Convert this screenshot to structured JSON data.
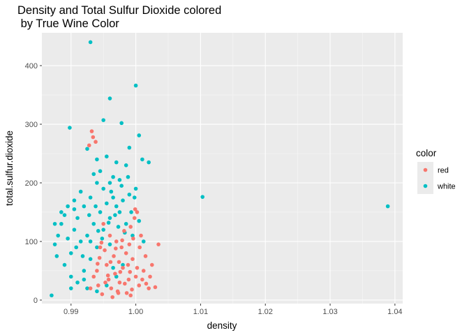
{
  "chart_data": {
    "type": "scatter",
    "title_lines": [
      "Density and Total Sulfur Dioxide colored",
      " by True Wine Color"
    ],
    "xlabel": "density",
    "ylabel": "total.sulfur.dioxide",
    "xlim": [
      0.9855,
      1.0412
    ],
    "ylim": [
      -6,
      456
    ],
    "x_ticks": [
      0.99,
      1.0,
      1.01,
      1.02,
      1.03,
      1.04
    ],
    "x_tick_labels": [
      "0.99",
      "1.00",
      "1.01",
      "1.02",
      "1.03",
      "1.04"
    ],
    "y_ticks": [
      0,
      100,
      200,
      300,
      400
    ],
    "y_tick_labels": [
      "0",
      "100",
      "200",
      "300",
      "400"
    ],
    "grid": true,
    "legend": {
      "title": "color",
      "position": "right",
      "entries": [
        {
          "label": "red",
          "color": "#F8766D"
        },
        {
          "label": "white",
          "color": "#00BFC4"
        }
      ]
    },
    "series": [
      {
        "name": "red",
        "color": "#F8766D",
        "points": [
          [
            0.9955,
            60
          ],
          [
            0.9968,
            45
          ],
          [
            0.9975,
            30
          ],
          [
            0.998,
            55
          ],
          [
            0.9962,
            20
          ],
          [
            0.9985,
            80
          ],
          [
            0.999,
            95
          ],
          [
            0.9995,
            70
          ],
          [
            1.0,
            40
          ],
          [
            1.0005,
            25
          ],
          [
            0.9972,
            15
          ],
          [
            0.9958,
            35
          ],
          [
            0.9948,
            10
          ],
          [
            0.994,
            50
          ],
          [
            0.9978,
            90
          ],
          [
            0.9988,
            60
          ],
          [
            0.9966,
            75
          ],
          [
            0.9952,
            85
          ],
          [
            0.9996,
            105
          ],
          [
            1.0002,
            55
          ],
          [
            1.001,
            35
          ],
          [
            1.002,
            20
          ],
          [
            1.003,
            22
          ],
          [
            1.0025,
            60
          ],
          [
            1.0035,
            95
          ],
          [
            1.0015,
            75
          ],
          [
            1.0008,
            110
          ],
          [
            0.9998,
            140
          ],
          [
            0.9992,
            125
          ],
          [
            0.9982,
            118
          ],
          [
            0.997,
            100
          ],
          [
            0.996,
            110
          ],
          [
            0.9945,
            90
          ],
          [
            0.9935,
            40
          ],
          [
            0.993,
            20
          ],
          [
            0.9942,
            25
          ],
          [
            0.9974,
            65
          ],
          [
            0.9986,
            12
          ],
          [
            0.9992,
            8
          ],
          [
            0.9964,
            5
          ],
          [
            0.995,
            130
          ],
          [
            0.9938,
            270
          ],
          [
            0.9932,
            288
          ],
          [
            0.9934,
            278
          ],
          [
            0.9928,
            264
          ],
          [
            1.0002,
            150
          ],
          [
            0.9999,
            155
          ],
          [
            0.9944,
            72
          ],
          [
            0.9976,
            48
          ],
          [
            0.9983,
            28
          ],
          [
            1.0012,
            50
          ],
          [
            1.0022,
            40
          ],
          [
            0.9994,
            18
          ],
          [
            0.9957,
            42
          ],
          [
            0.9969,
            88
          ],
          [
            0.9979,
            102
          ],
          [
            0.9989,
            35
          ],
          [
            0.9961,
            65
          ],
          [
            0.9953,
            30
          ],
          [
            1.0006,
            90
          ],
          [
            0.9941,
            62
          ],
          [
            0.9973,
            12
          ],
          [
            0.9991,
            48
          ],
          [
            1.0016,
            28
          ],
          [
            0.9947,
            98
          ]
        ]
      },
      {
        "name": "white",
        "color": "#00BFC4",
        "points": [
          [
            0.993,
            440
          ],
          [
            1.0,
            366
          ],
          [
            0.996,
            344
          ],
          [
            0.995,
            307
          ],
          [
            0.9898,
            294
          ],
          [
            0.9978,
            302
          ],
          [
            1.0005,
            281
          ],
          [
            0.999,
            260
          ],
          [
            0.9925,
            258
          ],
          [
            0.994,
            240
          ],
          [
            0.9955,
            245
          ],
          [
            0.997,
            235
          ],
          [
            0.9985,
            230
          ],
          [
            1.001,
            240
          ],
          [
            1.002,
            235
          ],
          [
            0.9945,
            220
          ],
          [
            0.9935,
            215
          ],
          [
            0.9965,
            210
          ],
          [
            0.9975,
            205
          ],
          [
            0.996,
            200
          ],
          [
            0.9915,
            185
          ],
          [
            0.9905,
            170
          ],
          [
            0.9895,
            160
          ],
          [
            0.9885,
            150
          ],
          [
            0.9875,
            130
          ],
          [
            0.988,
            110
          ],
          [
            0.9875,
            95
          ],
          [
            0.9878,
            75
          ],
          [
            0.989,
            60
          ],
          [
            0.99,
            40
          ],
          [
            0.991,
            30
          ],
          [
            0.9925,
            20
          ],
          [
            0.994,
            15
          ],
          [
            0.9955,
            25
          ],
          [
            0.992,
            50
          ],
          [
            0.993,
            70
          ],
          [
            0.994,
            90
          ],
          [
            0.995,
            120
          ],
          [
            0.996,
            140
          ],
          [
            0.997,
            160
          ],
          [
            0.998,
            170
          ],
          [
            0.999,
            180
          ],
          [
            1.0,
            190
          ],
          [
            0.9945,
            150
          ],
          [
            0.9935,
            130
          ],
          [
            0.9925,
            110
          ],
          [
            0.9915,
            100
          ],
          [
            0.9905,
            120
          ],
          [
            0.991,
            140
          ],
          [
            0.992,
            160
          ],
          [
            0.993,
            175
          ],
          [
            0.995,
            190
          ],
          [
            0.9965,
            175
          ],
          [
            0.9975,
            150
          ],
          [
            0.9985,
            130
          ],
          [
            0.9995,
            110
          ],
          [
            1.0005,
            135
          ],
          [
            1.0012,
            100
          ],
          [
            0.99,
            80
          ],
          [
            0.9895,
            105
          ],
          [
            0.9885,
            130
          ],
          [
            0.989,
            145
          ],
          [
            0.9905,
            155
          ],
          [
            0.994,
            200
          ],
          [
            0.9955,
            165
          ],
          [
            0.996,
            95
          ],
          [
            0.998,
            60
          ],
          [
            0.997,
            40
          ],
          [
            0.9965,
            55
          ],
          [
            1.0103,
            176
          ],
          [
            1.0389,
            160
          ],
          [
            0.987,
            8
          ],
          [
            0.99,
            20
          ],
          [
            0.992,
            35
          ],
          [
            0.993,
            100
          ],
          [
            0.9942,
            118
          ],
          [
            0.9958,
            132
          ],
          [
            0.9968,
            145
          ],
          [
            0.9978,
            195
          ],
          [
            0.9988,
            210
          ],
          [
            0.9998,
            175
          ],
          [
            0.9908,
            90
          ],
          [
            0.9918,
            75
          ],
          [
            0.9928,
            145
          ],
          [
            0.9938,
            160
          ],
          [
            0.9948,
            105
          ],
          [
            0.9962,
            185
          ],
          [
            0.9973,
            125
          ],
          [
            0.9983,
            115
          ],
          [
            0.9993,
            150
          ]
        ]
      }
    ]
  }
}
